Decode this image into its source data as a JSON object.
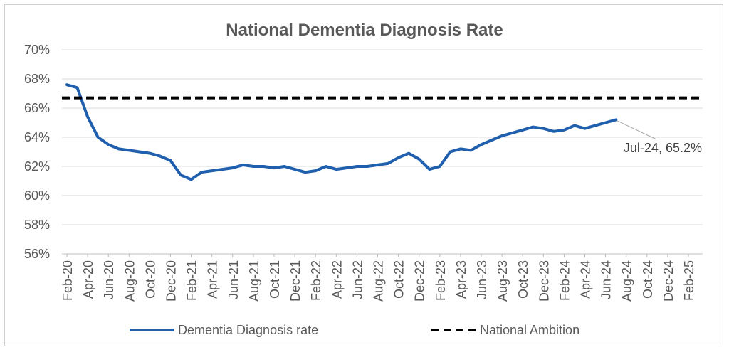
{
  "chart_data": {
    "type": "line",
    "title": "National Dementia Diagnosis Rate",
    "xlabel": "",
    "ylabel": "",
    "ylim": [
      56,
      70
    ],
    "y_ticks": [
      "56%",
      "58%",
      "60%",
      "62%",
      "64%",
      "66%",
      "68%",
      "70%"
    ],
    "x_ticks": [
      "Feb-20",
      "Apr-20",
      "Jun-20",
      "Aug-20",
      "Oct-20",
      "Dec-20",
      "Feb-21",
      "Apr-21",
      "Jun-21",
      "Aug-21",
      "Oct-21",
      "Dec-21",
      "Feb-22",
      "Apr-22",
      "Jun-22",
      "Aug-22",
      "Oct-22",
      "Dec-22",
      "Feb-23",
      "Apr-23",
      "Jun-23",
      "Aug-23",
      "Oct-23",
      "Dec-23",
      "Feb-24",
      "Apr-24",
      "Jun-24",
      "Aug-24",
      "Oct-24",
      "Dec-24",
      "Feb-25"
    ],
    "grid": true,
    "legend_position": "bottom",
    "series": [
      {
        "name": "Dementia Diagnosis rate",
        "color": "#1f5fad",
        "style": "solid",
        "x": [
          "Feb-20",
          "Mar-20",
          "Apr-20",
          "May-20",
          "Jun-20",
          "Jul-20",
          "Aug-20",
          "Sep-20",
          "Oct-20",
          "Nov-20",
          "Dec-20",
          "Jan-21",
          "Feb-21",
          "Mar-21",
          "Apr-21",
          "May-21",
          "Jun-21",
          "Jul-21",
          "Aug-21",
          "Sep-21",
          "Oct-21",
          "Nov-21",
          "Dec-21",
          "Jan-22",
          "Feb-22",
          "Mar-22",
          "Apr-22",
          "May-22",
          "Jun-22",
          "Jul-22",
          "Aug-22",
          "Sep-22",
          "Oct-22",
          "Nov-22",
          "Dec-22",
          "Jan-23",
          "Feb-23",
          "Mar-23",
          "Apr-23",
          "May-23",
          "Jun-23",
          "Jul-23",
          "Aug-23",
          "Sep-23",
          "Oct-23",
          "Nov-23",
          "Dec-23",
          "Jan-24",
          "Feb-24",
          "Mar-24",
          "Apr-24",
          "May-24",
          "Jun-24",
          "Jul-24"
        ],
        "values": [
          67.6,
          67.4,
          65.4,
          64.0,
          63.5,
          63.2,
          63.1,
          63.0,
          62.9,
          62.7,
          62.4,
          61.4,
          61.1,
          61.6,
          61.7,
          61.8,
          61.9,
          62.1,
          62.0,
          62.0,
          61.9,
          62.0,
          61.8,
          61.6,
          61.7,
          62.0,
          61.8,
          61.9,
          62.0,
          62.0,
          62.1,
          62.2,
          62.6,
          62.9,
          62.5,
          61.8,
          62.0,
          63.0,
          63.2,
          63.1,
          63.5,
          63.8,
          64.1,
          64.3,
          64.5,
          64.7,
          64.6,
          64.4,
          64.5,
          64.8,
          64.6,
          64.8,
          65.0,
          65.2
        ]
      },
      {
        "name": "National Ambition",
        "color": "#000000",
        "style": "dashed",
        "value": 66.7
      }
    ],
    "annotation": "Jul-24, 65.2%"
  }
}
